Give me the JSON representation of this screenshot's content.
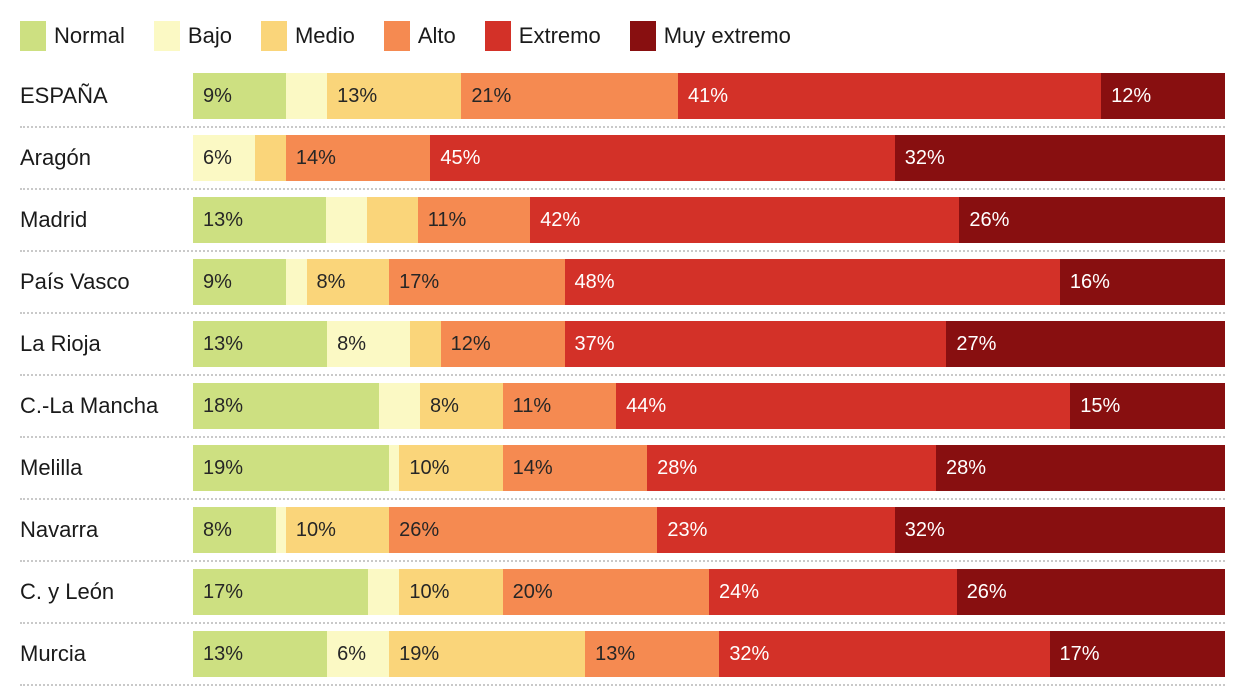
{
  "colors": {
    "text_dark": "#262626",
    "text_light": "#ffffff",
    "region_label": "#1a1a1a",
    "separator": "#c9c9c9",
    "background": "#ffffff"
  },
  "chart_data": {
    "type": "bar",
    "stacked": true,
    "orientation": "horizontal",
    "xlim": [
      0,
      100
    ],
    "grid": false,
    "legend_position": "top",
    "legend": [
      {
        "name": "Normal",
        "slug": "normal",
        "color": "#cde081",
        "text_color": "#262626"
      },
      {
        "name": "Bajo",
        "slug": "bajo",
        "color": "#fbf9c4",
        "text_color": "#262626"
      },
      {
        "name": "Medio",
        "slug": "medio",
        "color": "#fad57a",
        "text_color": "#262626"
      },
      {
        "name": "Alto",
        "slug": "alto",
        "color": "#f58a51",
        "text_color": "#262626"
      },
      {
        "name": "Extremo",
        "slug": "extremo",
        "color": "#d33128",
        "text_color": "#ffffff"
      },
      {
        "name": "Muy extremo",
        "slug": "muy-extremo",
        "color": "#880f10",
        "text_color": "#ffffff"
      }
    ],
    "rows": [
      {
        "region": "ESPAÑA",
        "values": [
          9,
          4,
          13,
          21,
          41,
          12
        ],
        "labels": [
          "9%",
          null,
          "13%",
          "21%",
          "41%",
          "12%"
        ]
      },
      {
        "region": "Aragón",
        "values": [
          0,
          6,
          3,
          14,
          45,
          32
        ],
        "labels": [
          null,
          "6%",
          null,
          "14%",
          "45%",
          "32%"
        ]
      },
      {
        "region": "Madrid",
        "values": [
          13,
          4,
          5,
          11,
          42,
          26
        ],
        "labels": [
          "13%",
          null,
          null,
          "11%",
          "42%",
          "26%"
        ]
      },
      {
        "region": "País Vasco",
        "values": [
          9,
          2,
          8,
          17,
          48,
          16
        ],
        "labels": [
          "9%",
          null,
          "8%",
          "17%",
          "48%",
          "16%"
        ]
      },
      {
        "region": "La Rioja",
        "values": [
          13,
          8,
          3,
          12,
          37,
          27
        ],
        "labels": [
          "13%",
          "8%",
          null,
          "12%",
          "37%",
          "27%"
        ]
      },
      {
        "region": "C.-La Mancha",
        "values": [
          18,
          4,
          8,
          11,
          44,
          15
        ],
        "labels": [
          "18%",
          null,
          "8%",
          "11%",
          "44%",
          "15%"
        ]
      },
      {
        "region": "Melilla",
        "values": [
          19,
          1,
          10,
          14,
          28,
          28
        ],
        "labels": [
          "19%",
          null,
          "10%",
          "14%",
          "28%",
          "28%"
        ]
      },
      {
        "region": "Navarra",
        "values": [
          8,
          1,
          10,
          26,
          23,
          32
        ],
        "labels": [
          "8%",
          null,
          "10%",
          "26%",
          "23%",
          "32%"
        ]
      },
      {
        "region": "C. y León",
        "values": [
          17,
          3,
          10,
          20,
          24,
          26
        ],
        "labels": [
          "17%",
          null,
          "10%",
          "20%",
          "24%",
          "26%"
        ]
      },
      {
        "region": "Murcia",
        "values": [
          13,
          6,
          19,
          13,
          32,
          17
        ],
        "labels": [
          "13%",
          "6%",
          "19%",
          "13%",
          "32%",
          "17%"
        ]
      }
    ]
  }
}
